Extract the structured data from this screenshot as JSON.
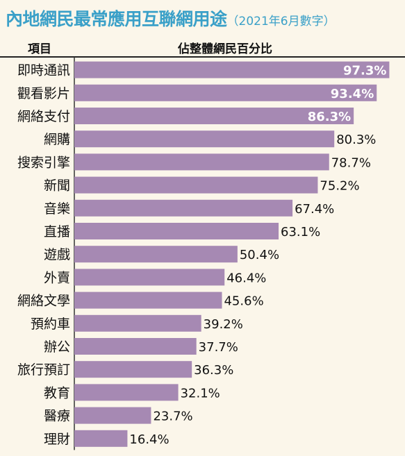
{
  "chart_data": {
    "type": "bar",
    "orientation": "horizontal",
    "title": "內地網民最常應用互聯網用途",
    "subtitle": "（2021年6月數字）",
    "category_header": "項目",
    "value_header": "佔整體網民百分比",
    "unit": "%",
    "categories": [
      "即時通訊",
      "觀看影片",
      "網絡支付",
      "網購",
      "搜索引擎",
      "新聞",
      "音樂",
      "直播",
      "遊戲",
      "外賣",
      "網絡文學",
      "預約車",
      "辦公",
      "旅行預訂",
      "教育",
      "醫療",
      "理財"
    ],
    "values": [
      97.3,
      93.4,
      86.3,
      80.3,
      78.7,
      75.2,
      67.4,
      63.1,
      50.4,
      46.4,
      45.6,
      39.2,
      37.7,
      36.3,
      32.1,
      23.7,
      16.4
    ],
    "value_labels": [
      "97.3%",
      "93.4%",
      "86.3%",
      "80.3%",
      "78.7%",
      "75.2%",
      "67.4%",
      "63.1%",
      "50.4%",
      "46.4%",
      "45.6%",
      "39.2%",
      "37.7%",
      "36.3%",
      "32.1%",
      "23.7%",
      "16.4%"
    ],
    "xlim": [
      0,
      100
    ],
    "bar_color": "#a689b3",
    "inside_label_color": "#ffffff",
    "outside_label_color": "#111111"
  }
}
